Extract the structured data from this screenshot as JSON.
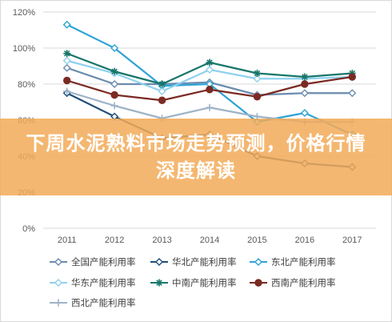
{
  "banner": {
    "title": "下周水泥熟料市场走势预测，价格行情深度解读"
  },
  "chart_data": {
    "type": "line",
    "title": "",
    "xlabel": "",
    "ylabel": "",
    "ylim": [
      0,
      120
    ],
    "y_tick_labels": [
      "0%",
      "20%",
      "40%",
      "60%",
      "80%",
      "100%",
      "120%"
    ],
    "x": [
      "2011",
      "2012",
      "2013",
      "2014",
      "2015",
      "2016",
      "2017"
    ],
    "grid": true,
    "legend_position": "bottom",
    "series": [
      {
        "name": "全国产能利用率",
        "color": "#6b8cae",
        "marker": "diamond-open",
        "values": [
          89,
          80,
          80,
          81,
          74,
          75,
          75
        ]
      },
      {
        "name": "华北产能利用率",
        "color": "#1f4e79",
        "marker": "diamond-open",
        "values": [
          75,
          62,
          50,
          52,
          40,
          36,
          34
        ]
      },
      {
        "name": "东北产能利用率",
        "color": "#2ea3d6",
        "marker": "diamond-open",
        "values": [
          113,
          100,
          79,
          80,
          59,
          64,
          52
        ]
      },
      {
        "name": "华东产能利用率",
        "color": "#8fd1ef",
        "marker": "diamond-open",
        "values": [
          93,
          86,
          76,
          88,
          83,
          83,
          84
        ]
      },
      {
        "name": "中南产能利用率",
        "color": "#17766a",
        "marker": "star",
        "values": [
          97,
          87,
          80,
          92,
          86,
          84,
          86
        ]
      },
      {
        "name": "西南产能利用率",
        "color": "#7b2a23",
        "marker": "circle",
        "values": [
          82,
          74,
          71,
          77,
          73,
          80,
          84
        ]
      },
      {
        "name": "西北产能利用率",
        "color": "#9eb3c7",
        "marker": "plus",
        "values": [
          76,
          68,
          61,
          67,
          62,
          59,
          59
        ]
      }
    ]
  }
}
